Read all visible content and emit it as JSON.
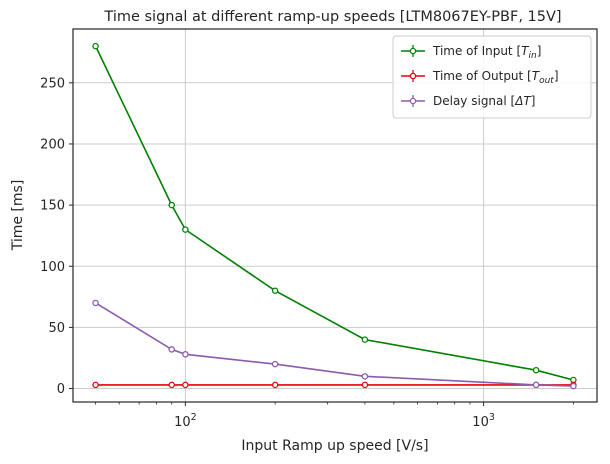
{
  "chart_data": {
    "type": "line",
    "title": "Time signal at different ramp-up speeds [LTM8067EY-PBF, 15V]",
    "xlabel": "Input Ramp up speed [V/s]",
    "ylabel": "Time [ms]",
    "xscale": "log",
    "xlim": [
      42,
      2400
    ],
    "ylim": [
      -11,
      294
    ],
    "grid": true,
    "legend_position": "top-right",
    "x_ticks": [
      {
        "value": 100,
        "base": "10",
        "exp": "2"
      },
      {
        "value": 1000,
        "base": "10",
        "exp": "3"
      }
    ],
    "y_ticks": [
      0,
      50,
      100,
      150,
      200,
      250
    ],
    "series": [
      {
        "name_prefix": "Time of Input [",
        "name_main": "T",
        "name_sub": "in",
        "name_suffix": "]",
        "color": "#008000",
        "x": [
          50,
          90,
          100,
          200,
          400,
          1500,
          2000
        ],
        "y": [
          280,
          150,
          130,
          80,
          40,
          15,
          7
        ]
      },
      {
        "name_prefix": "Time of Output [",
        "name_main": "T",
        "name_sub": "out",
        "name_suffix": "]",
        "color": "#e8000b",
        "x": [
          50,
          90,
          100,
          200,
          400,
          1500,
          2000
        ],
        "y": [
          3,
          3,
          3,
          3,
          3,
          3,
          3
        ]
      },
      {
        "name_prefix": "Delay signal [",
        "name_main": "ΔT",
        "name_sub": "",
        "name_suffix": "]",
        "color": "#8c5bb0",
        "x": [
          50,
          90,
          100,
          200,
          400,
          1500,
          2000
        ],
        "y": [
          70,
          32,
          28,
          20,
          10,
          3,
          2
        ]
      }
    ]
  }
}
